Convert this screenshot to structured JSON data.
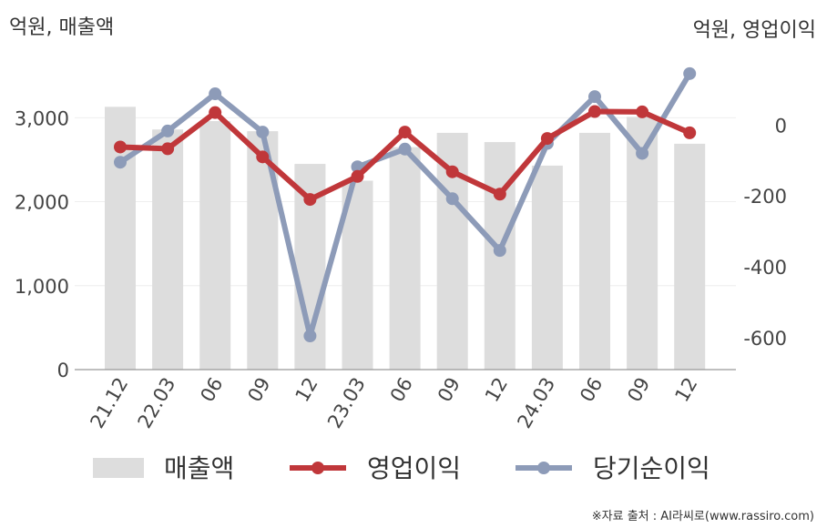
{
  "chart_data": {
    "type": "bar+line",
    "left_unit": "억원, 매출액",
    "right_unit": "억원, 영업이익",
    "categories": [
      "21.12",
      "22.03",
      "06",
      "09",
      "12",
      "23.03",
      "06",
      "09",
      "12",
      "24.03",
      "06",
      "09",
      "12"
    ],
    "left_axis": {
      "ylim": [
        0,
        3600
      ],
      "ticks": [
        0,
        1000,
        2000,
        3000
      ],
      "tick_labels": [
        "0",
        "1,000",
        "2,000",
        "3,000"
      ]
    },
    "right_axis": {
      "ylim": [
        -690,
        160
      ],
      "ticks": [
        0,
        -200,
        -400,
        -600
      ],
      "tick_labels": [
        "0",
        "-200",
        "-400",
        "-600"
      ]
    },
    "grid": true,
    "legend_position": "bottom",
    "series": [
      {
        "name": "매출액",
        "type": "bar",
        "axis": "left",
        "color": "#dddddd",
        "values": [
          3130,
          2860,
          2960,
          2840,
          2450,
          2250,
          2650,
          2820,
          2710,
          2430,
          2820,
          3010,
          2690
        ]
      },
      {
        "name": "영업이익",
        "type": "line",
        "axis": "right",
        "color": "#c0373a",
        "values": [
          -62,
          -67,
          35,
          -90,
          -210,
          -145,
          -20,
          -132,
          -195,
          -38,
          38,
          37,
          -22
        ]
      },
      {
        "name": "당기순이익",
        "type": "line",
        "axis": "right",
        "color": "#8d9bb8",
        "values": [
          -105,
          -17,
          88,
          -20,
          -595,
          -118,
          -68,
          -208,
          -354,
          -52,
          80,
          -80,
          145
        ]
      }
    ],
    "source": "※자료 출처 : AI라씨로(www.rassiro.com)"
  }
}
